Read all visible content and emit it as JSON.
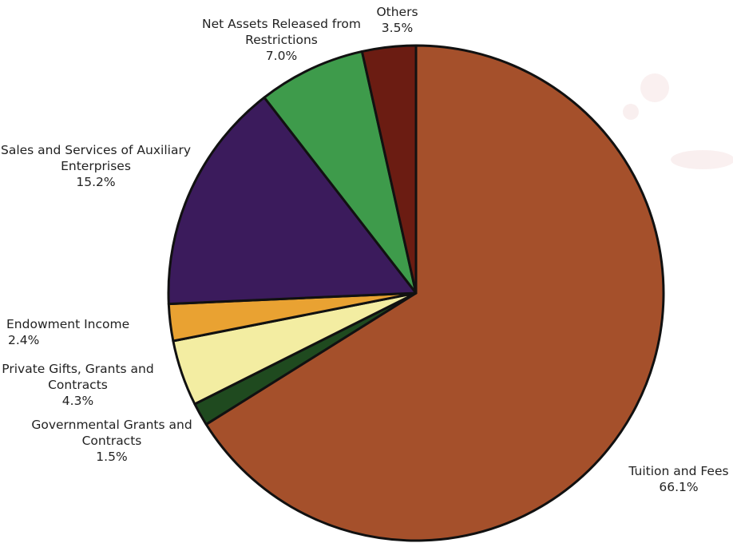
{
  "chart_data": {
    "type": "pie",
    "categories": [
      "Tuition and Fees",
      "Governmental Grants and Contracts",
      "Private Gifts, Grants and Contracts",
      "Endowment Income",
      "Sales and Services of Auxiliary Enterprises",
      "Net Assets Released from Restrictions",
      "Others"
    ],
    "values": [
      66.1,
      1.5,
      4.3,
      2.4,
      15.2,
      7.0,
      3.5
    ],
    "value_labels": [
      "66.1%",
      "1.5%",
      "4.3%",
      "2.4%",
      "15.2%",
      "7.0%",
      "3.5%"
    ],
    "colors": [
      "#a5502b",
      "#1f4a1f",
      "#f3eda2",
      "#e9a232",
      "#3b1b5c",
      "#3e9b4b",
      "#6b1c12"
    ]
  }
}
